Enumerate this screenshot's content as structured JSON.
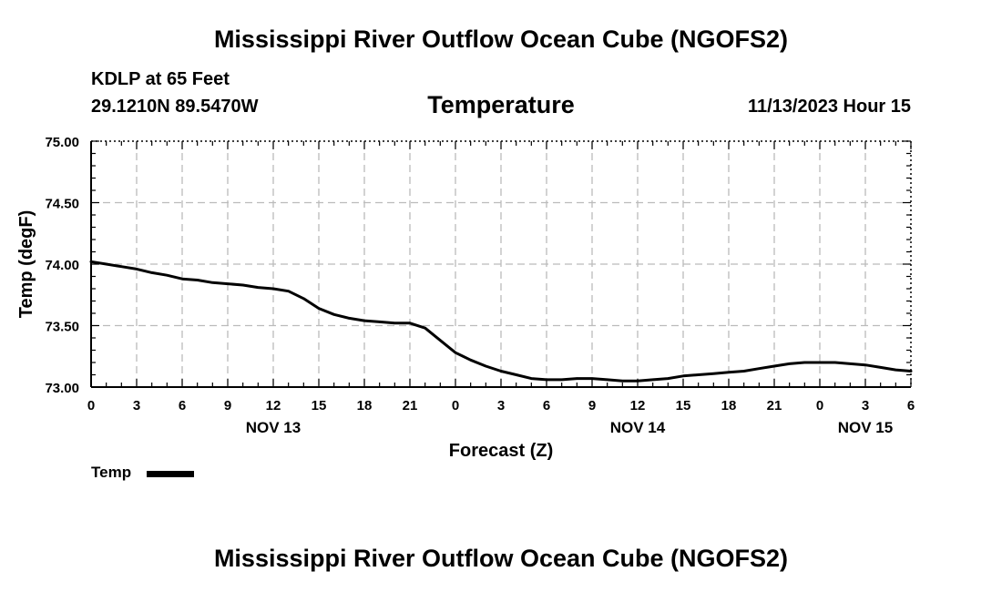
{
  "header": {
    "title": "Mississippi River Outflow Ocean Cube (NGOFS2)",
    "station": "KDLP at 65 Feet",
    "coords": "29.1210N  89.5470W",
    "variable": "Temperature",
    "datetime": "11/13/2023 Hour 15"
  },
  "footer": {
    "title": "Mississippi River Outflow Ocean Cube (NGOFS2)"
  },
  "legend": {
    "label": "Temp"
  },
  "chart_data": {
    "type": "line",
    "title": "Temperature",
    "xlabel": "Forecast (Z)",
    "ylabel": "Temp (degF)",
    "ylim": [
      73.0,
      75.0
    ],
    "xlim": [
      0,
      54
    ],
    "grid": true,
    "y_ticks": [
      "73.00",
      "73.50",
      "74.00",
      "74.50",
      "75.00"
    ],
    "y_tick_values": [
      73.0,
      73.5,
      74.0,
      74.5,
      75.0
    ],
    "x_ticks": [
      "0",
      "3",
      "6",
      "9",
      "12",
      "15",
      "18",
      "21",
      "0",
      "3",
      "6",
      "9",
      "12",
      "15",
      "18",
      "21",
      "0",
      "3",
      "6"
    ],
    "day_labels": [
      {
        "label": "NOV 13",
        "hour": 12
      },
      {
        "label": "NOV 14",
        "hour": 36
      },
      {
        "label": "NOV 15",
        "hour": 51
      }
    ],
    "series": [
      {
        "name": "Temp",
        "color": "#000000",
        "x": [
          0,
          1,
          2,
          3,
          4,
          5,
          6,
          7,
          8,
          9,
          10,
          11,
          12,
          13,
          14,
          15,
          16,
          17,
          18,
          19,
          20,
          21,
          22,
          23,
          24,
          25,
          26,
          27,
          28,
          29,
          30,
          31,
          32,
          33,
          34,
          35,
          36,
          37,
          38,
          39,
          40,
          41,
          42,
          43,
          44,
          45,
          46,
          47,
          48,
          49,
          50,
          51,
          52,
          53,
          54
        ],
        "values": [
          74.02,
          74.0,
          73.98,
          73.96,
          73.93,
          73.91,
          73.88,
          73.87,
          73.85,
          73.84,
          73.83,
          73.81,
          73.8,
          73.78,
          73.72,
          73.64,
          73.59,
          73.56,
          73.54,
          73.53,
          73.52,
          73.52,
          73.48,
          73.38,
          73.28,
          73.22,
          73.17,
          73.13,
          73.1,
          73.07,
          73.06,
          73.06,
          73.07,
          73.07,
          73.06,
          73.05,
          73.05,
          73.06,
          73.07,
          73.09,
          73.1,
          73.11,
          73.12,
          73.13,
          73.15,
          73.17,
          73.19,
          73.2,
          73.2,
          73.2,
          73.19,
          73.18,
          73.16,
          73.14,
          73.13
        ]
      }
    ]
  }
}
